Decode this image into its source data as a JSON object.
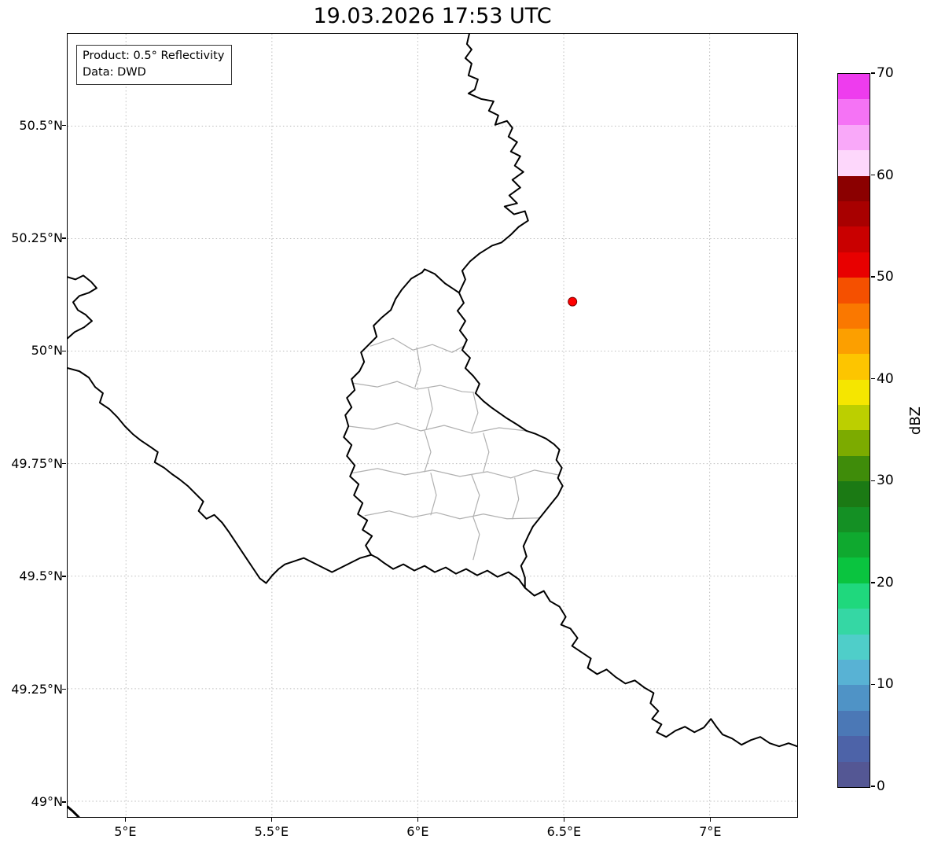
{
  "title": "19.03.2026 17:53 UTC",
  "annotation": {
    "line1": "Product: 0.5° Reflectivity",
    "line2": "Data: DWD"
  },
  "map": {
    "lon_range": [
      4.8,
      7.3
    ],
    "lat_range": [
      48.965,
      50.705
    ],
    "x_ticks": [
      {
        "value": 5.0,
        "label": "5°E"
      },
      {
        "value": 5.5,
        "label": "5.5°E"
      },
      {
        "value": 6.0,
        "label": "6°E"
      },
      {
        "value": 6.5,
        "label": "6.5°E"
      },
      {
        "value": 7.0,
        "label": "7°E"
      }
    ],
    "y_ticks": [
      {
        "value": 50.5,
        "label": "50.5°N"
      },
      {
        "value": 50.25,
        "label": "50.25°N"
      },
      {
        "value": 50.0,
        "label": "50°N"
      },
      {
        "value": 49.75,
        "label": "49.75°N"
      },
      {
        "value": 49.5,
        "label": "49.5°N"
      },
      {
        "value": 49.25,
        "label": "49.25°N"
      },
      {
        "value": 49.0,
        "label": "49°N"
      }
    ],
    "marker": {
      "lon": 6.53,
      "lat": 50.11,
      "color": "#ff0000",
      "edge_color": "#7a0000"
    },
    "border_color": "#000000",
    "district_border_color": "#b0b0b0",
    "gridline_color": "#bdbdbd"
  },
  "colorbar": {
    "label": "dBZ",
    "min": 0,
    "max": 70,
    "ticks": [
      70,
      60,
      50,
      40,
      30,
      20,
      10,
      0
    ],
    "band_step": 2.5,
    "colors_top_to_bottom": [
      "#ee3cee",
      "#f573f5",
      "#f9a8f9",
      "#fdd7fb",
      "#8b0000",
      "#a80000",
      "#c90000",
      "#e80000",
      "#f55000",
      "#fa7800",
      "#fc9f00",
      "#fdc500",
      "#f5e600",
      "#bccf00",
      "#7cab00",
      "#3f8c0a",
      "#1b7a14",
      "#149024",
      "#0fa92f",
      "#0ac43f",
      "#1fd87d",
      "#35d7a4",
      "#4fcec9",
      "#58b2d4",
      "#4f93c6",
      "#4b78b6",
      "#4d63a8",
      "#545794"
    ]
  }
}
